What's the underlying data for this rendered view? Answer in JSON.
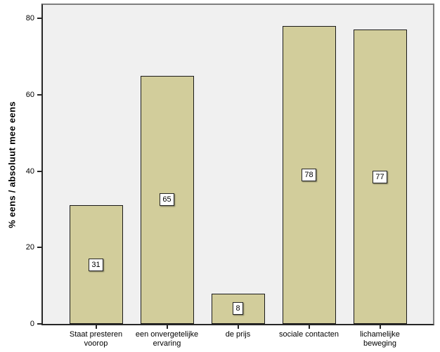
{
  "chart_data": {
    "type": "bar",
    "title": "",
    "xlabel": "",
    "ylabel": "% eens / absoluut mee eens",
    "categories": [
      "Staat presteren voorop",
      "een onvergetelijke ervaring",
      "de prijs",
      "sociale contacten",
      "lichamelijke beweging"
    ],
    "values": [
      31,
      65,
      8,
      78,
      77
    ],
    "value_labels": [
      "31",
      "65",
      "8",
      "78",
      "77"
    ],
    "ylim": [
      0,
      83.5
    ],
    "yticks": [
      0,
      20,
      40,
      60,
      80
    ],
    "ytick_labels": [
      "0",
      "20",
      "40",
      "60",
      "80"
    ],
    "grid": false,
    "legend": "none",
    "bar_color": "#D2CD9B",
    "bar_border_color": "#1A1A1A",
    "plot_background": "#F0F0F0",
    "outer_background": "#FFFFFF",
    "frame_color": "#7F7F7F",
    "axis_color": "#262626",
    "value_box_background": "#FFFFFF",
    "text_color": "#000000"
  }
}
